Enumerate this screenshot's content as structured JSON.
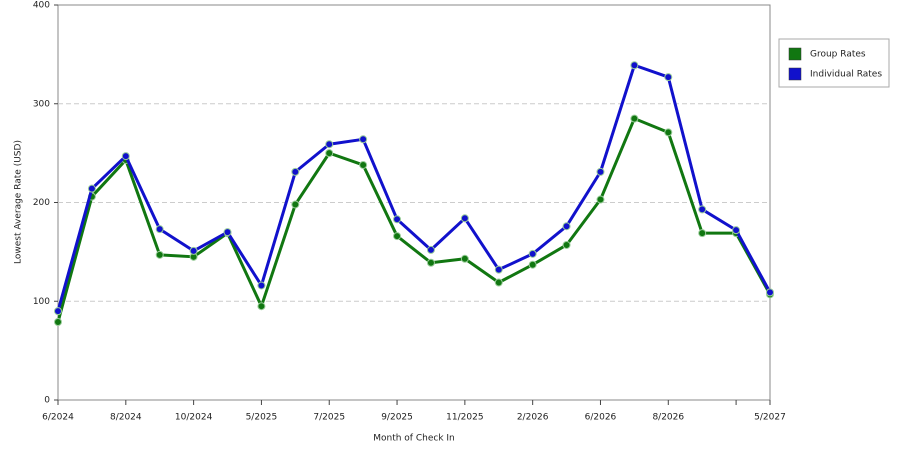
{
  "chart_data": {
    "type": "line",
    "x_label": "Month of Check In",
    "y_label": "Lowest Average Rate (USD)",
    "categories": [
      "6/2024",
      null,
      "8/2024",
      null,
      "10/2024",
      null,
      "5/2025",
      null,
      "7/2025",
      null,
      "9/2025",
      null,
      "11/2025",
      null,
      "2/2026",
      null,
      "6/2026",
      null,
      "8/2026",
      null,
      null,
      "5/2027"
    ],
    "series": [
      {
        "name": "Group Rates",
        "color": "#117711",
        "values": [
          79,
          206,
          243,
          147,
          145,
          169,
          95,
          198,
          250,
          238,
          166,
          139,
          143,
          119,
          137,
          157,
          203,
          285,
          271,
          169,
          169,
          107
        ]
      },
      {
        "name": "Individual Rates",
        "color": "#1111cc",
        "values": [
          90,
          214,
          247,
          173,
          151,
          170,
          116,
          231,
          259,
          264,
          183,
          152,
          184,
          132,
          148,
          176,
          231,
          339,
          327,
          193,
          172,
          109
        ]
      }
    ],
    "ylim": [
      0,
      400
    ],
    "yticks": [
      0,
      100,
      200,
      300,
      400
    ],
    "grid": true,
    "legend": "right"
  }
}
